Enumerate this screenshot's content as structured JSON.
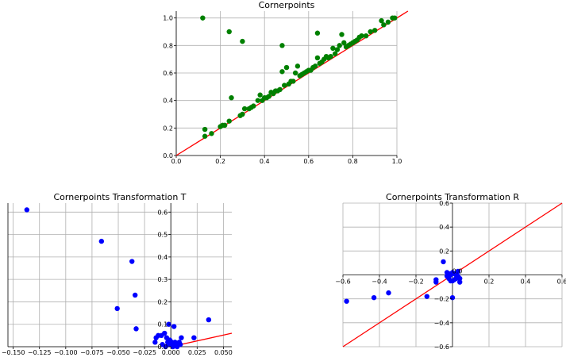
{
  "chart_data": [
    {
      "type": "scatter",
      "title": "Cornerpoints",
      "xlim": [
        0,
        1.0
      ],
      "ylim": [
        0,
        1.05
      ],
      "grid": true,
      "x_ticks": [
        0.0,
        0.2,
        0.4,
        0.6,
        0.8,
        1.0
      ],
      "x_tick_labels": [
        "0.0",
        "0.2",
        "0.4",
        "0.6",
        "0.8",
        "1.0"
      ],
      "y_ticks": [
        0.0,
        0.2,
        0.4,
        0.6,
        0.8,
        1.0
      ],
      "y_tick_labels": [
        "0.0",
        "0.2",
        "0.4",
        "0.6",
        "0.8",
        "1.0"
      ],
      "point_color": "#008000",
      "line_color": "#ff0000",
      "reference_line": [
        [
          0,
          0
        ],
        [
          1.05,
          1.05
        ]
      ],
      "points": [
        [
          0.12,
          1.0
        ],
        [
          0.24,
          0.9
        ],
        [
          0.3,
          0.83
        ],
        [
          0.48,
          0.8
        ],
        [
          0.64,
          0.89
        ],
        [
          0.13,
          0.19
        ],
        [
          0.13,
          0.14
        ],
        [
          0.16,
          0.16
        ],
        [
          0.2,
          0.21
        ],
        [
          0.21,
          0.22
        ],
        [
          0.22,
          0.22
        ],
        [
          0.24,
          0.25
        ],
        [
          0.25,
          0.42
        ],
        [
          0.29,
          0.29
        ],
        [
          0.3,
          0.3
        ],
        [
          0.31,
          0.34
        ],
        [
          0.33,
          0.34
        ],
        [
          0.34,
          0.35
        ],
        [
          0.35,
          0.36
        ],
        [
          0.37,
          0.4
        ],
        [
          0.38,
          0.44
        ],
        [
          0.39,
          0.4
        ],
        [
          0.4,
          0.42
        ],
        [
          0.41,
          0.42
        ],
        [
          0.42,
          0.43
        ],
        [
          0.43,
          0.46
        ],
        [
          0.44,
          0.45
        ],
        [
          0.45,
          0.47
        ],
        [
          0.46,
          0.47
        ],
        [
          0.47,
          0.48
        ],
        [
          0.48,
          0.61
        ],
        [
          0.49,
          0.51
        ],
        [
          0.5,
          0.64
        ],
        [
          0.51,
          0.52
        ],
        [
          0.52,
          0.54
        ],
        [
          0.53,
          0.54
        ],
        [
          0.54,
          0.6
        ],
        [
          0.55,
          0.65
        ],
        [
          0.56,
          0.58
        ],
        [
          0.57,
          0.59
        ],
        [
          0.58,
          0.6
        ],
        [
          0.59,
          0.61
        ],
        [
          0.6,
          0.62
        ],
        [
          0.61,
          0.62
        ],
        [
          0.62,
          0.64
        ],
        [
          0.63,
          0.65
        ],
        [
          0.64,
          0.71
        ],
        [
          0.65,
          0.67
        ],
        [
          0.66,
          0.68
        ],
        [
          0.67,
          0.7
        ],
        [
          0.68,
          0.72
        ],
        [
          0.69,
          0.71
        ],
        [
          0.7,
          0.72
        ],
        [
          0.71,
          0.78
        ],
        [
          0.72,
          0.74
        ],
        [
          0.73,
          0.77
        ],
        [
          0.74,
          0.8
        ],
        [
          0.75,
          0.88
        ],
        [
          0.76,
          0.82
        ],
        [
          0.77,
          0.79
        ],
        [
          0.78,
          0.8
        ],
        [
          0.79,
          0.81
        ],
        [
          0.8,
          0.82
        ],
        [
          0.81,
          0.83
        ],
        [
          0.82,
          0.84
        ],
        [
          0.83,
          0.86
        ],
        [
          0.84,
          0.87
        ],
        [
          0.86,
          0.87
        ],
        [
          0.88,
          0.9
        ],
        [
          0.9,
          0.91
        ],
        [
          0.93,
          0.98
        ],
        [
          0.94,
          0.95
        ],
        [
          0.96,
          0.97
        ],
        [
          0.98,
          1.0
        ],
        [
          0.99,
          1.0
        ]
      ]
    },
    {
      "type": "scatter",
      "title": "Cornerpoints Transformation T",
      "xlim": [
        -0.155,
        0.058
      ],
      "ylim": [
        0,
        0.64
      ],
      "grid": true,
      "x_ticks": [
        -0.15,
        -0.125,
        -0.1,
        -0.075,
        -0.05,
        -0.025,
        0.0,
        0.025,
        0.05
      ],
      "x_tick_labels": [
        "−0.150",
        "−0.125",
        "−0.100",
        "−0.075",
        "−0.050",
        "−0.025",
        "0.000",
        "0.025",
        "0.050"
      ],
      "y_ticks": [
        0.0,
        0.1,
        0.2,
        0.3,
        0.4,
        0.5,
        0.6
      ],
      "y_tick_labels": [
        "0.0",
        "0.1",
        "0.2",
        "0.3",
        "0.4",
        "0.5",
        "0.6"
      ],
      "point_color": "#0000ff",
      "line_color": "#ff0000",
      "reference_line": [
        [
          0,
          0
        ],
        [
          0.058,
          0.06
        ]
      ],
      "points": [
        [
          -0.137,
          0.61
        ],
        [
          -0.066,
          0.47
        ],
        [
          -0.037,
          0.38
        ],
        [
          -0.051,
          0.17
        ],
        [
          -0.034,
          0.23
        ],
        [
          -0.033,
          0.08
        ],
        [
          0.036,
          0.12
        ],
        [
          -0.002,
          0.1
        ],
        [
          0.003,
          0.09
        ],
        [
          0.022,
          0.04
        ],
        [
          0.01,
          0.04
        ],
        [
          -0.012,
          0.05
        ],
        [
          -0.009,
          0.05
        ],
        [
          -0.006,
          0.06
        ],
        [
          -0.004,
          0.04
        ],
        [
          -0.003,
          0.02
        ],
        [
          -0.001,
          0.03
        ],
        [
          0.0,
          0.01
        ],
        [
          0.001,
          0.02
        ],
        [
          0.002,
          0.0
        ],
        [
          0.003,
          0.01
        ],
        [
          0.004,
          0.02
        ],
        [
          0.005,
          0.01
        ],
        [
          0.006,
          0.0
        ],
        [
          0.007,
          0.01
        ],
        [
          0.008,
          0.02
        ],
        [
          0.009,
          0.01
        ],
        [
          -0.015,
          0.02
        ],
        [
          -0.014,
          0.04
        ],
        [
          -0.008,
          0.01
        ],
        [
          -0.005,
          0.0
        ],
        [
          -0.002,
          0.01
        ]
      ]
    },
    {
      "type": "scatter",
      "title": "Cornerpoints Transformation R",
      "xlim": [
        -0.6,
        0.6
      ],
      "ylim": [
        -0.6,
        0.6
      ],
      "grid": true,
      "x_ticks": [
        -0.6,
        -0.4,
        -0.2,
        0.2,
        0.4,
        0.6
      ],
      "x_tick_labels": [
        "−0.6",
        "−0.4",
        "−0.2",
        "0.2",
        "0.4",
        "0.6"
      ],
      "y_ticks": [
        -0.6,
        -0.4,
        -0.2,
        0.2,
        0.4,
        0.6
      ],
      "y_tick_labels": [
        "−0.6",
        "−0.4",
        "−0.2",
        "0.2",
        "0.4",
        "0.6"
      ],
      "zero_tick_label": "0.0",
      "point_color": "#0000ff",
      "line_color": "#ff0000",
      "reference_line": [
        [
          -0.6,
          -0.6
        ],
        [
          0.6,
          0.6
        ]
      ],
      "points": [
        [
          -0.58,
          -0.22
        ],
        [
          -0.43,
          -0.19
        ],
        [
          -0.35,
          -0.15
        ],
        [
          -0.14,
          -0.18
        ],
        [
          -0.09,
          -0.04
        ],
        [
          -0.09,
          -0.06
        ],
        [
          0.0,
          -0.19
        ],
        [
          -0.05,
          0.11
        ],
        [
          -0.03,
          0.02
        ],
        [
          -0.02,
          0.01
        ],
        [
          -0.01,
          0.0
        ],
        [
          0.0,
          0.02
        ],
        [
          0.01,
          0.01
        ],
        [
          0.02,
          0.0
        ],
        [
          0.03,
          -0.01
        ],
        [
          0.04,
          -0.06
        ],
        [
          0.03,
          0.03
        ],
        [
          0.02,
          -0.03
        ],
        [
          -0.02,
          -0.03
        ],
        [
          -0.01,
          -0.05
        ],
        [
          0.01,
          -0.04
        ],
        [
          0.0,
          -0.05
        ],
        [
          -0.03,
          -0.01
        ],
        [
          0.04,
          -0.03
        ]
      ]
    }
  ]
}
